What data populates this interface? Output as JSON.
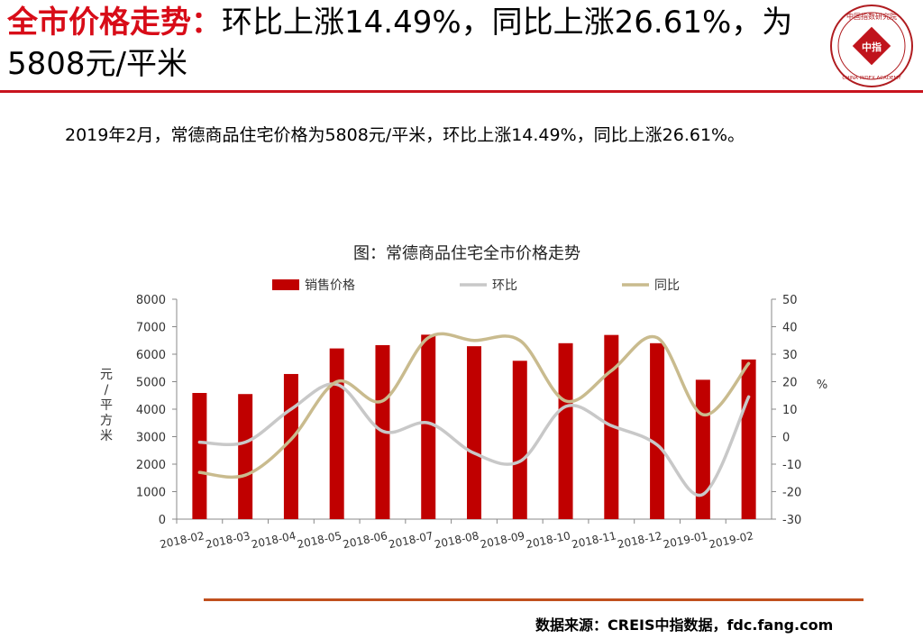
{
  "header": {
    "title_keyword": "全市价格走势：",
    "title_rest": "环比上涨14.49%，同比上涨26.61%，为5808元/平米"
  },
  "logo": {
    "center_text": "中指",
    "top_chars": "中国指数研究院",
    "bottom_text": "CHINA INDEX ACADEMY"
  },
  "summary": "2019年2月，常德商品住宅价格为5808元/平米，环比上涨14.49%，同比上涨26.61%。",
  "chart_data": {
    "type": "bar",
    "title": "图：常德商品住宅全市价格走势",
    "categories": [
      "2018-02",
      "2018-03",
      "2018-04",
      "2018-05",
      "2018-06",
      "2018-07",
      "2018-08",
      "2018-09",
      "2018-10",
      "2018-11",
      "2018-12",
      "2019-01",
      "2019-02"
    ],
    "series": [
      {
        "name": "销售价格",
        "type": "bar",
        "axis": "left",
        "color": "#c00000",
        "values": [
          4590,
          4550,
          5280,
          6210,
          6330,
          6710,
          6290,
          5760,
          6400,
          6700,
          6400,
          5070,
          5808
        ]
      },
      {
        "name": "环比",
        "type": "line",
        "axis": "right",
        "color": "#c8c8c8",
        "values": [
          -2,
          -2,
          10,
          19,
          2,
          5,
          -6,
          -9,
          11,
          4,
          -3,
          -21,
          14.49
        ]
      },
      {
        "name": "同比",
        "type": "line",
        "axis": "right",
        "color": "#c9bb8e",
        "values": [
          -13,
          -14,
          -1,
          20,
          13,
          36,
          35,
          35,
          13,
          24,
          36,
          8,
          26.61
        ]
      }
    ],
    "y_left": {
      "label": "元/平方米",
      "ylim": [
        0,
        8000
      ],
      "ticks": [
        "0",
        "1000",
        "2000",
        "3000",
        "4000",
        "5000",
        "6000",
        "7000",
        "8000"
      ]
    },
    "y_right": {
      "label": "%",
      "ylim": [
        -30,
        50
      ],
      "ticks": [
        "-30",
        "-20",
        "-10",
        "0",
        "10",
        "20",
        "30",
        "40",
        "50"
      ]
    },
    "legend": "top",
    "grid": false
  },
  "footer": {
    "source": "数据来源：CREIS中指数据，fdc.fang.com"
  }
}
